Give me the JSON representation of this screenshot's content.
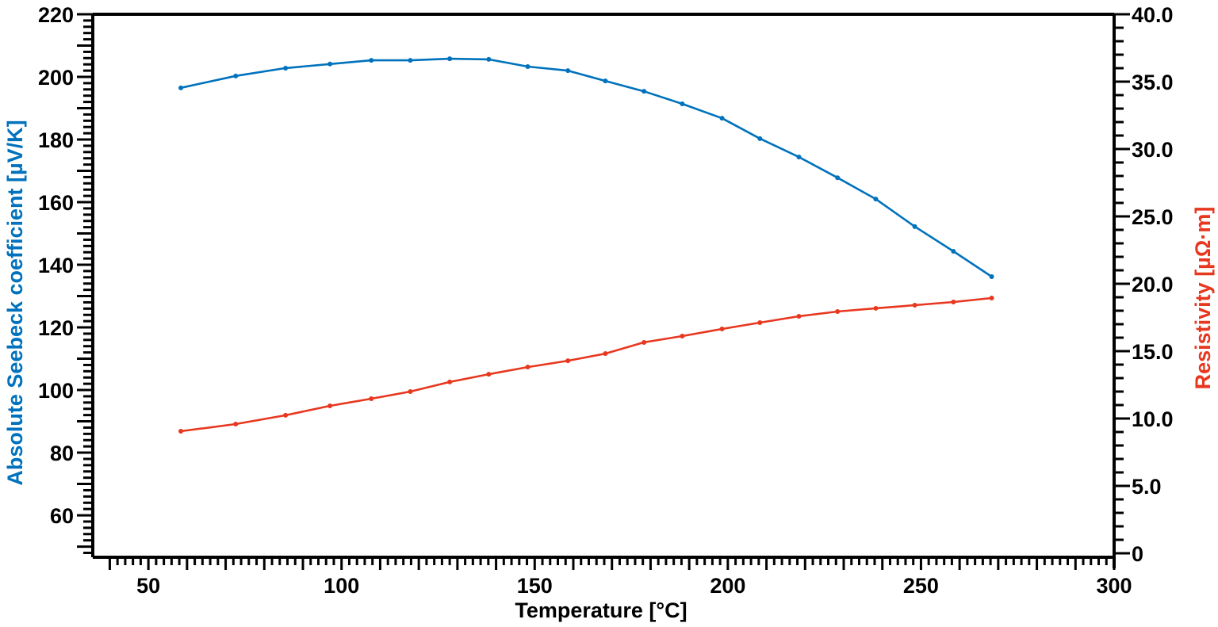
{
  "chart_data": {
    "type": "line",
    "title": "",
    "xlabel": "Temperature [°C]",
    "ylabel": "Absolute Seebeck coefficient [µV/K]",
    "y2label": "Resistivity [µΩ·m]",
    "xlim": [
      35.6,
      300
    ],
    "ylim": [
      46.6,
      220
    ],
    "y2lim": [
      0,
      40
    ],
    "x_ticks": [
      50,
      100,
      150,
      200,
      250,
      300
    ],
    "y_ticks": [
      60,
      80,
      100,
      120,
      140,
      160,
      180,
      200,
      220
    ],
    "y2_ticks": [
      "0",
      "5.0",
      "10.0",
      "15.0",
      "20.0",
      "25.0",
      "30.0",
      "35.0",
      "40.0"
    ],
    "grid": false,
    "legend": null,
    "x": [
      58.4,
      72.6,
      85.5,
      97.0,
      107.7,
      117.8,
      128.0,
      138.1,
      148.2,
      158.6,
      168.3,
      178.3,
      188.2,
      198.5,
      208.3,
      218.4,
      228.4,
      238.3,
      248.4,
      258.4,
      268.3
    ],
    "series": [
      {
        "name": "Absolute Seebeck coefficient",
        "axis": "left",
        "color": "#0072BD",
        "values": [
          196.5,
          200.3,
          202.8,
          204.1,
          205.3,
          205.3,
          205.8,
          205.6,
          203.3,
          202.0,
          198.7,
          195.4,
          191.4,
          186.8,
          180.3,
          174.4,
          167.8,
          161.0,
          152.2,
          144.3,
          136.2
        ]
      },
      {
        "name": "Resistivity",
        "axis": "right",
        "color": "#E8371F",
        "values": [
          9.06,
          9.59,
          10.24,
          10.94,
          11.47,
          12.0,
          12.71,
          13.29,
          13.82,
          14.29,
          14.82,
          15.65,
          16.12,
          16.65,
          17.12,
          17.59,
          17.94,
          18.18,
          18.41,
          18.65,
          18.94
        ]
      }
    ]
  },
  "colors": {
    "left_axis_title": "#0072BD",
    "right_axis_title": "#E8371F",
    "axis": "#000000"
  }
}
